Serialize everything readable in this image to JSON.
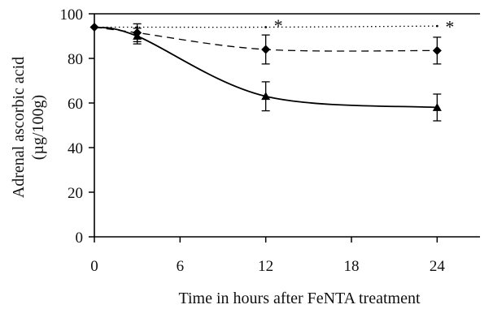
{
  "chart_data": {
    "type": "line",
    "xlabel": "Time in hours after FeNTA treatment",
    "ylabel_line1": "Adrenal ascorbic acid",
    "ylabel_line2": "(µg/100g)",
    "xlim": [
      0,
      27
    ],
    "ylim": [
      0,
      100
    ],
    "xticks": [
      0,
      6,
      12,
      18,
      24
    ],
    "yticks": [
      0,
      20,
      40,
      60,
      80,
      100
    ],
    "grid": false,
    "series": [
      {
        "style": "dotted",
        "marker": "none",
        "x": [
          0,
          3,
          12,
          24
        ],
        "y": [
          94,
          94,
          94,
          94.5
        ],
        "err": [
          0,
          0,
          0,
          0
        ]
      },
      {
        "style": "dashed",
        "marker": "diamond",
        "x": [
          0,
          3,
          12,
          24
        ],
        "y": [
          94,
          91.5,
          84,
          83.5
        ],
        "err": [
          0,
          4,
          6.5,
          6
        ]
      },
      {
        "style": "solid",
        "marker": "triangle",
        "x": [
          0,
          3,
          12,
          24
        ],
        "y": [
          94,
          90,
          63,
          58
        ],
        "err": [
          0,
          3.5,
          6.5,
          6
        ]
      }
    ],
    "annotations": [
      {
        "text": "*",
        "x": 12,
        "y": 84
      },
      {
        "text": "*",
        "x": 24,
        "y": 83.5
      }
    ]
  }
}
